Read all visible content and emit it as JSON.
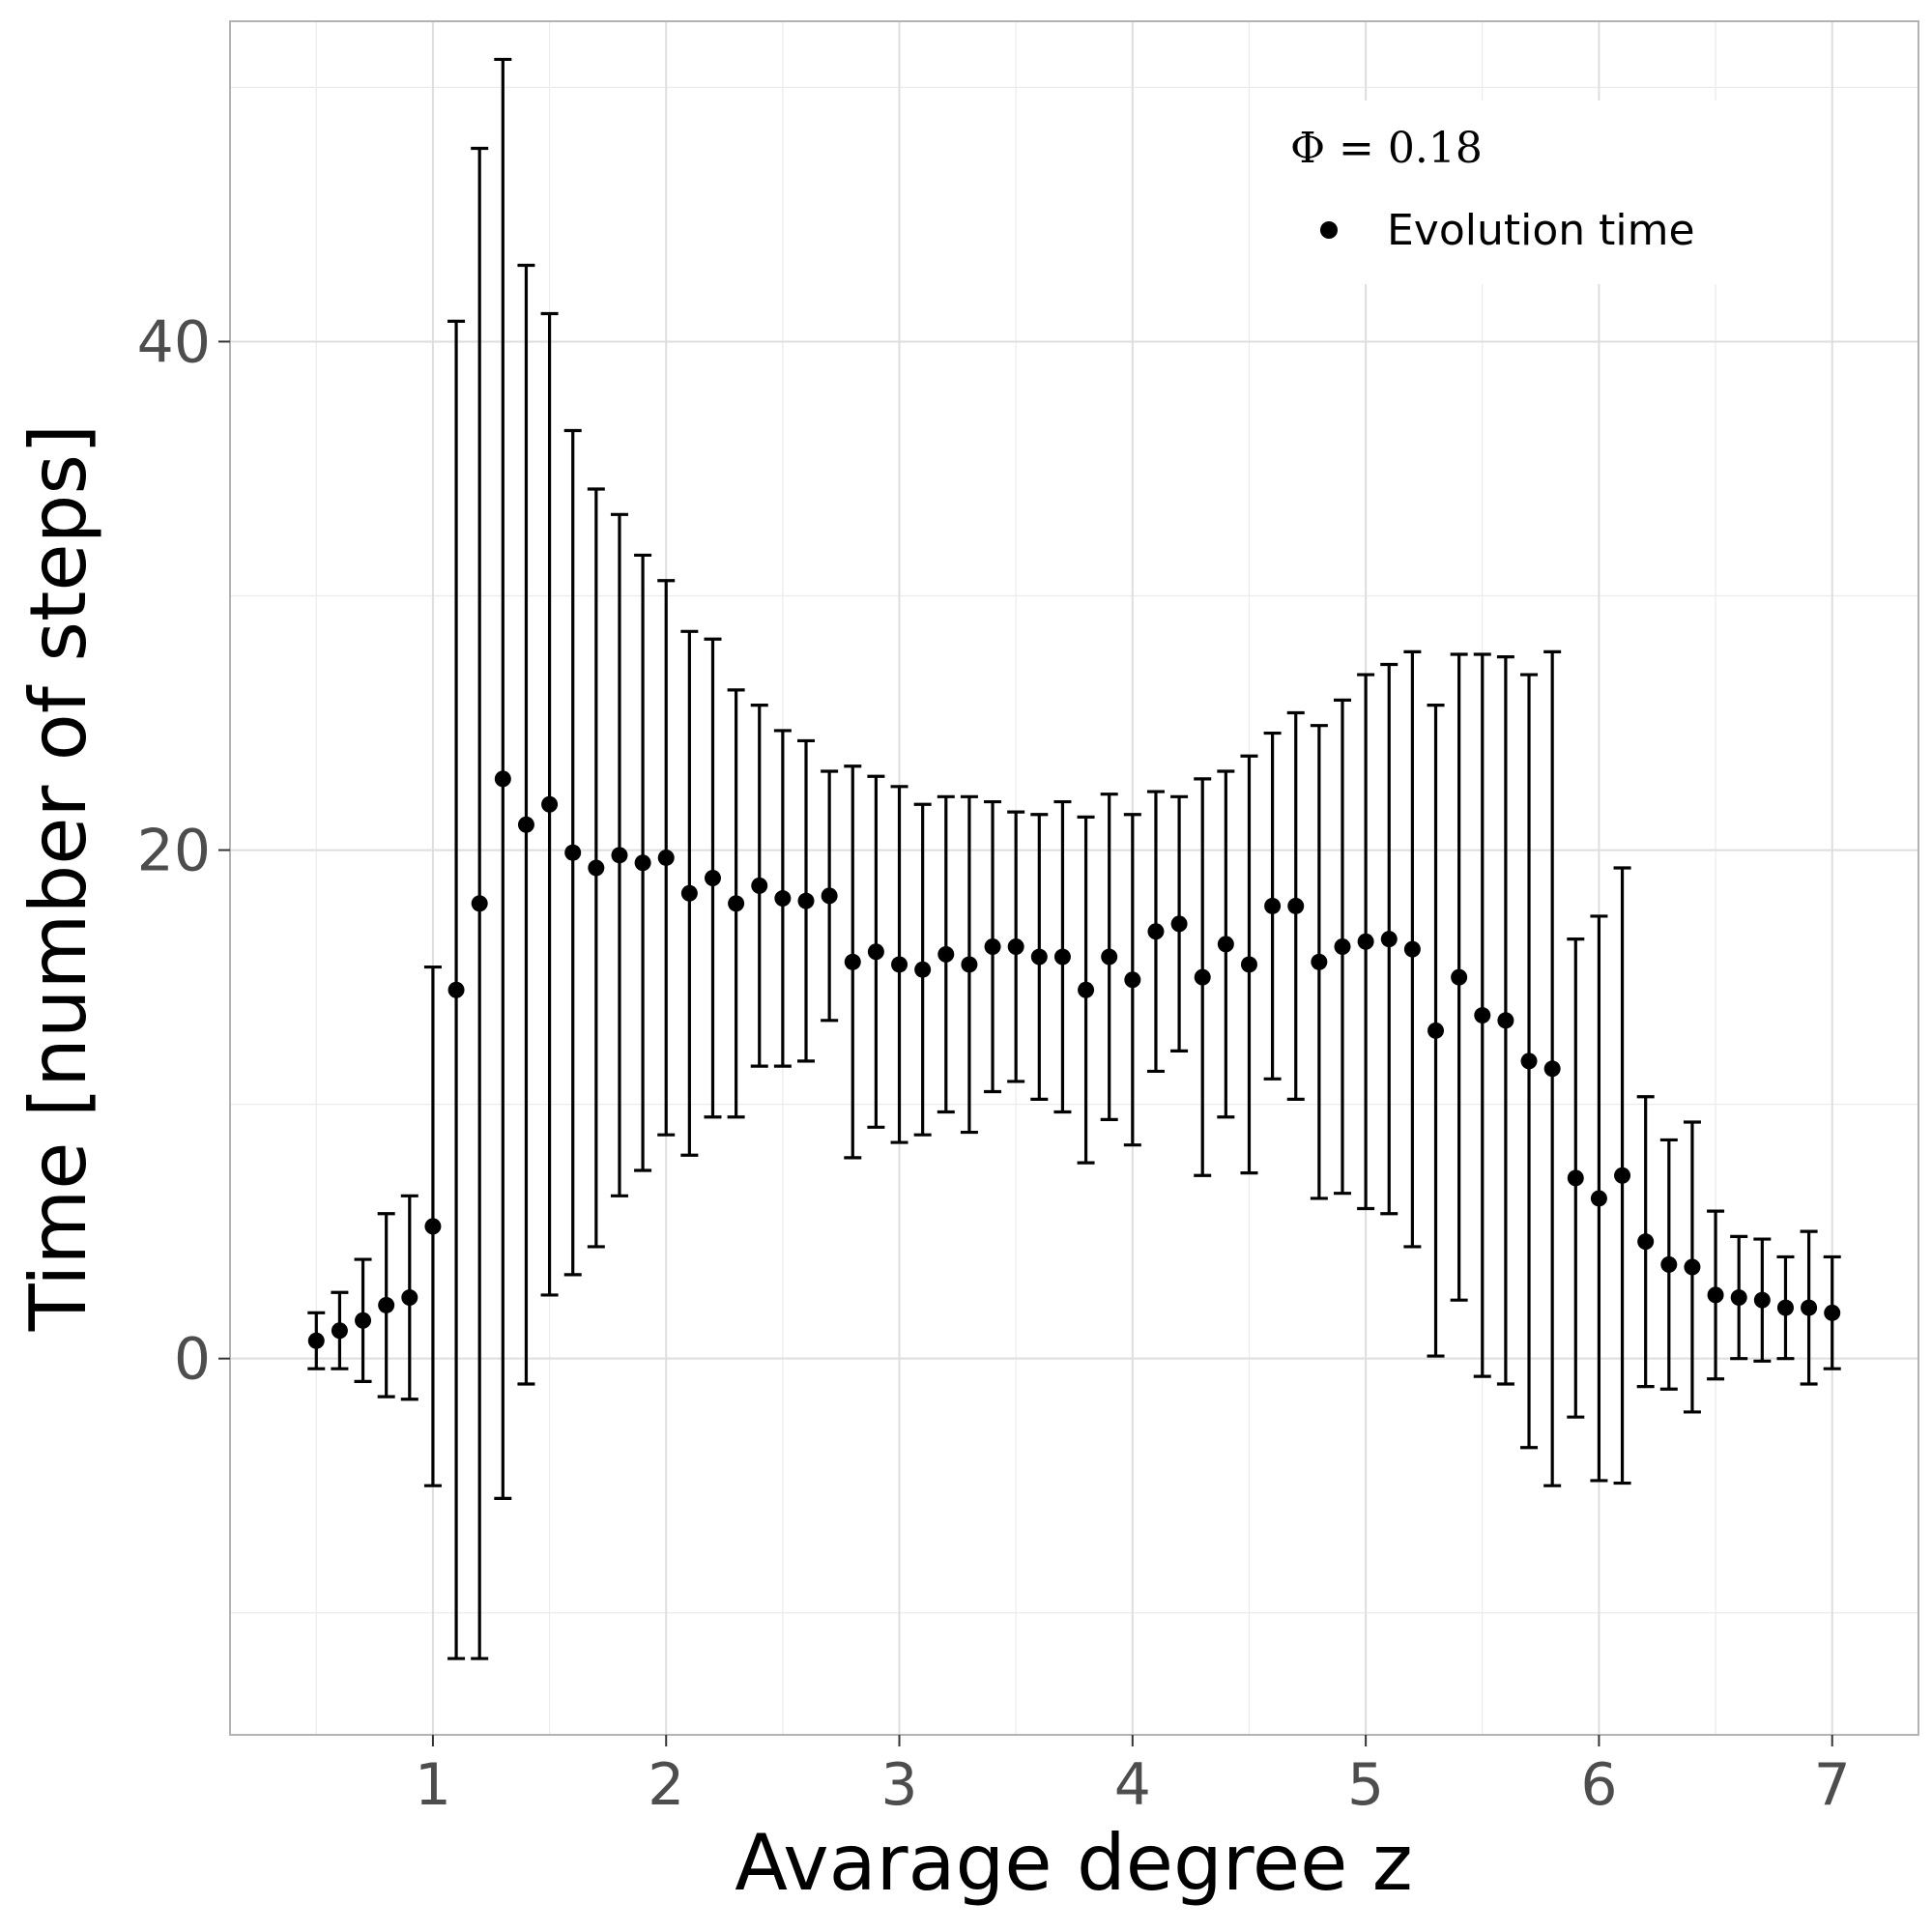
{
  "chart_data": {
    "type": "scatter",
    "xlabel": "Avarage degree z",
    "ylabel": "Time [number of steps]",
    "xlim": [
      0.13,
      7.37
    ],
    "ylim": [
      -14.8,
      52.6
    ],
    "x_ticks": [
      1,
      2,
      3,
      4,
      5,
      6,
      7
    ],
    "x_tick_labels": [
      "1",
      "2",
      "3",
      "4",
      "5",
      "6",
      "7"
    ],
    "x_minor_ticks": [
      0.5,
      1.5,
      2.5,
      3.5,
      4.5,
      5.5,
      6.5
    ],
    "y_ticks": [
      0,
      20,
      40
    ],
    "y_tick_labels": [
      "0",
      "20",
      "40"
    ],
    "y_minor_ticks": [
      -10,
      10,
      30,
      50
    ],
    "grid": true,
    "legend": {
      "title": "Φ = 0.18",
      "position": "top-right",
      "entries": [
        "Evolution time"
      ]
    },
    "series": [
      {
        "name": "Evolution time",
        "color": "#000000",
        "x": [
          0.5,
          0.6,
          0.7,
          0.8,
          0.9,
          1.0,
          1.1,
          1.2,
          1.3,
          1.4,
          1.5,
          1.6,
          1.7,
          1.8,
          1.9,
          2.0,
          2.1,
          2.2,
          2.3,
          2.4,
          2.5,
          2.6,
          2.7,
          2.8,
          2.9,
          3.0,
          3.1,
          3.2,
          3.3,
          3.4,
          3.5,
          3.6,
          3.7,
          3.8,
          3.9,
          4.0,
          4.1,
          4.2,
          4.3,
          4.4,
          4.5,
          4.6,
          4.7,
          4.8,
          4.9,
          5.0,
          5.1,
          5.2,
          5.3,
          5.4,
          5.5,
          5.6,
          5.7,
          5.8,
          5.9,
          6.0,
          6.1,
          6.2,
          6.3,
          6.4,
          6.5,
          6.6,
          6.7,
          6.8,
          6.9,
          7.0
        ],
        "y": [
          0.7,
          1.1,
          1.5,
          2.1,
          2.4,
          5.2,
          14.5,
          17.9,
          22.8,
          21.0,
          21.8,
          19.9,
          19.3,
          19.8,
          19.5,
          19.7,
          18.3,
          18.9,
          17.9,
          18.6,
          18.1,
          18.0,
          18.2,
          15.6,
          16.0,
          15.5,
          15.3,
          15.9,
          15.5,
          16.2,
          16.2,
          15.8,
          15.8,
          14.5,
          15.8,
          14.9,
          16.8,
          17.1,
          15.0,
          16.3,
          15.5,
          17.8,
          17.8,
          15.6,
          16.2,
          16.4,
          16.5,
          16.1,
          12.9,
          15.0,
          13.5,
          13.3,
          11.7,
          11.4,
          7.1,
          6.3,
          7.2,
          4.6,
          3.7,
          3.6,
          2.5,
          2.4,
          2.3,
          2.0,
          2.0,
          1.8
        ],
        "error": [
          1.1,
          1.5,
          2.4,
          3.6,
          4.0,
          10.2,
          26.3,
          29.7,
          28.3,
          22.0,
          19.3,
          16.6,
          14.9,
          13.4,
          12.1,
          10.9,
          10.3,
          9.4,
          8.4,
          7.1,
          6.6,
          6.3,
          4.9,
          7.7,
          6.9,
          7.0,
          6.5,
          6.2,
          6.6,
          5.7,
          5.3,
          5.6,
          6.1,
          6.8,
          6.4,
          6.5,
          5.5,
          5.0,
          7.8,
          6.8,
          8.2,
          6.8,
          7.6,
          9.3,
          9.7,
          10.5,
          10.8,
          11.7,
          12.8,
          12.7,
          14.2,
          14.3,
          15.2,
          16.4,
          9.4,
          11.1,
          12.1,
          5.7,
          4.9,
          5.7,
          3.3,
          2.4,
          2.4,
          2.0,
          3.0,
          2.2
        ]
      }
    ]
  }
}
